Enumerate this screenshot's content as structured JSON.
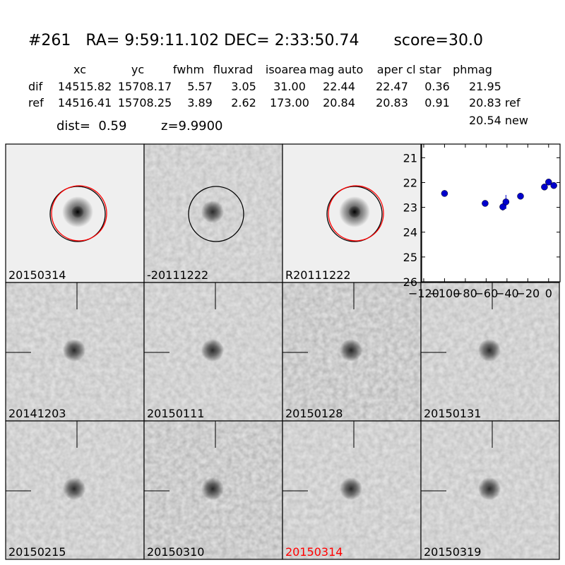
{
  "header": {
    "title": "#261   RA= 9:59:11.102 DEC= 2:33:50.74       score=30.0"
  },
  "table": {
    "columns": [
      "xc",
      "yc",
      "fwhm",
      "fluxrad",
      "isoarea",
      "mag auto",
      "aper",
      "cl star",
      "phmag"
    ],
    "rows": [
      [
        "dif",
        "14515.82",
        "15708.17",
        "5.57",
        "3.05",
        "31.00",
        "22.44",
        "22.47",
        "0.36",
        "21.95"
      ],
      [
        "ref",
        "14516.41",
        "15708.25",
        "3.89",
        "2.62",
        "173.00",
        "20.84",
        "20.83",
        "0.91",
        "20.83 ref"
      ]
    ],
    "extra": "20.54 new"
  },
  "dist": "dist=  0.59",
  "z": "z=9.9900",
  "stamps": [
    {
      "label": "20150314",
      "circles": [
        "#000000",
        "#ff0000"
      ]
    },
    {
      "label": "-20111222",
      "circles": [
        "#000000"
      ]
    },
    {
      "label": "R20111222",
      "circles": [
        "#000000",
        "#ff0000"
      ]
    },
    {
      "label": "20141203"
    },
    {
      "label": "20150111"
    },
    {
      "label": "20150128"
    },
    {
      "label": "20150131"
    },
    {
      "label": "20150215"
    },
    {
      "label": "20150310"
    },
    {
      "label": "20150314",
      "label_color": "#ff0000"
    },
    {
      "label": "20150319"
    }
  ],
  "chart_data": {
    "type": "scatter",
    "color": "#0000cc",
    "x": [
      -100,
      -61,
      -44,
      -41,
      -27,
      -4,
      0,
      5
    ],
    "y": [
      22.44,
      22.84,
      22.98,
      22.78,
      22.55,
      22.18,
      21.98,
      22.12
    ],
    "errors": [
      0.1,
      0.12,
      0.15,
      0.28,
      0.08,
      0.08,
      0.07,
      0.08
    ],
    "xlim": [
      -122,
      11
    ],
    "ylim": [
      26,
      20.45
    ],
    "xticks": [
      {
        "value": -120,
        "label": "−120"
      },
      {
        "value": -100,
        "label": "−100"
      },
      {
        "value": -80,
        "label": "−80"
      },
      {
        "value": -60,
        "label": "−60"
      },
      {
        "value": -40,
        "label": "−40"
      },
      {
        "value": -20,
        "label": "−20"
      },
      0
    ],
    "yticks": [
      21,
      22,
      23,
      24,
      25,
      26
    ]
  }
}
